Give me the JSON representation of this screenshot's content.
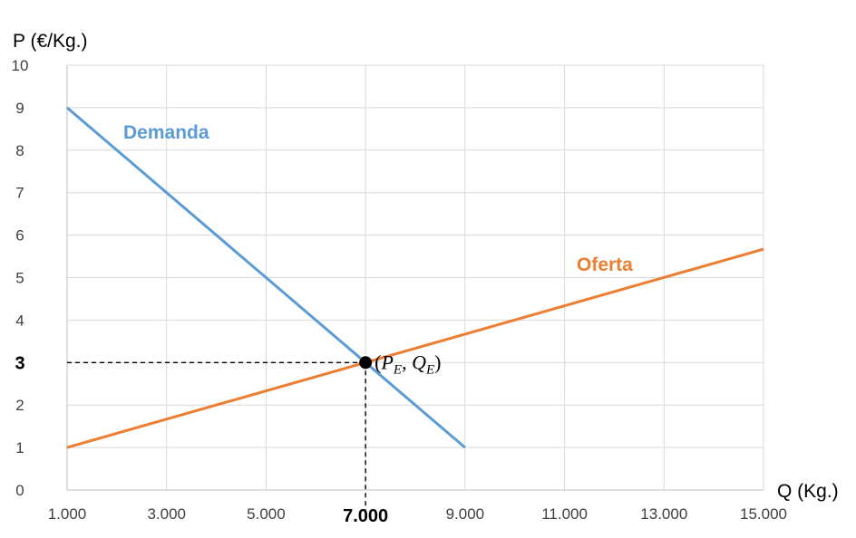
{
  "chart_data": {
    "type": "line",
    "xlabel": "Q (Kg.)",
    "ylabel": "P (€/Kg.)",
    "xlim": [
      1000,
      15000
    ],
    "ylim": [
      0,
      10
    ],
    "x_ticks": [
      "1.000",
      "3.000",
      "5.000",
      "7.000",
      "9.000",
      "11.000",
      "13.000",
      "15.000"
    ],
    "x_tick_values": [
      1000,
      3000,
      5000,
      7000,
      9000,
      11000,
      13000,
      15000
    ],
    "y_ticks": [
      "0",
      "1",
      "2",
      "3",
      "4",
      "5",
      "6",
      "7",
      "8",
      "9",
      "10"
    ],
    "y_tick_values": [
      0,
      1,
      2,
      3,
      4,
      5,
      6,
      7,
      8,
      9,
      10
    ],
    "grid": true,
    "series": [
      {
        "name": "Demanda",
        "color": "#5B9BD5",
        "x": [
          1000,
          9000
        ],
        "y": [
          9,
          1
        ]
      },
      {
        "name": "Oferta",
        "color": "#ED7D31",
        "x": [
          1000,
          15000
        ],
        "y": [
          1,
          5.67
        ]
      }
    ],
    "equilibrium": {
      "x": 7000,
      "y": 3,
      "x_label": "7.000",
      "y_label": "3",
      "label_p": "P",
      "label_p_sub": "E",
      "label_q": "Q",
      "label_q_sub": "E"
    }
  }
}
